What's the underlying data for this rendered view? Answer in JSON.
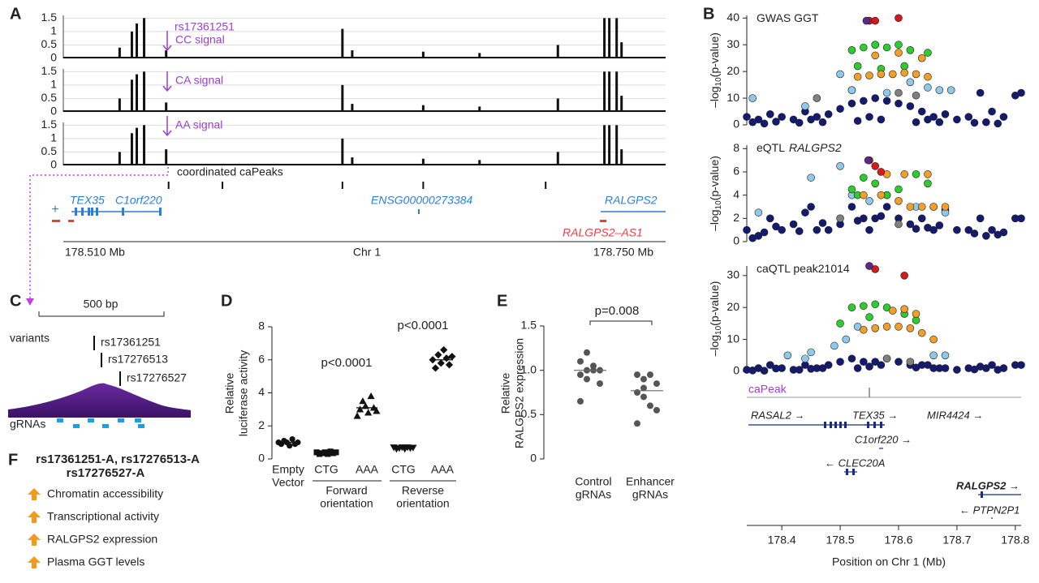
{
  "figure": {
    "panel_labels": [
      "A",
      "B",
      "C",
      "D",
      "E",
      "F"
    ],
    "panel_a": {
      "xlim": [
        178.509,
        178.755
      ],
      "peaks_x": [
        178.532,
        178.537,
        178.539,
        178.542,
        178.551,
        178.623,
        178.627,
        178.656,
        178.679,
        178.711,
        178.73,
        178.732,
        178.735,
        178.737
      ],
      "tracks": [
        {
          "label": "CC signal",
          "ylim": [
            0,
            1.6
          ],
          "yticks": [
            0,
            0.5,
            1,
            1.5
          ],
          "values": [
            0.4,
            1.0,
            1.3,
            1.5,
            0.3,
            1.1,
            0.3,
            0.25,
            0.2,
            0.5,
            1.5,
            1.5,
            1.5,
            0.6
          ]
        },
        {
          "label": "CA signal",
          "ylim": [
            0,
            1.6
          ],
          "yticks": [
            0,
            0.5,
            1,
            1.5
          ],
          "values": [
            0.5,
            1.2,
            1.4,
            1.5,
            0.35,
            1.0,
            0.3,
            0.25,
            0.2,
            0.5,
            1.5,
            1.5,
            1.5,
            0.6
          ]
        },
        {
          "label": "AA signal",
          "ylim": [
            0,
            1.6
          ],
          "yticks": [
            0,
            0.5,
            1,
            1.5
          ],
          "values": [
            0.5,
            1.2,
            1.4,
            1.5,
            0.6,
            1.0,
            0.3,
            0.25,
            0.2,
            0.5,
            1.5,
            1.5,
            1.5,
            0.6
          ]
        }
      ],
      "snp": "rs17361251",
      "capeaks_label": "coordinated caPeaks",
      "capeaks_x": [
        178.552,
        178.574,
        178.623,
        178.656,
        178.706
      ],
      "strand": "+",
      "genes": [
        "TEX35",
        "C1orf220",
        "ENSG00000273384",
        "RALGPS2",
        "RALGPS2–AS1"
      ],
      "axis_labels": [
        "178.510 Mb",
        "Chr 1",
        "178.750 Mb"
      ]
    },
    "panel_b": {
      "xlim": [
        178.34,
        178.81
      ],
      "xticks": [
        178.4,
        178.5,
        178.6,
        178.7,
        178.8
      ],
      "xlabel": "Position on Chr 1 (Mb)",
      "ylabel_parts": [
        "–log",
        "10",
        "(p-value)"
      ],
      "plots": [
        {
          "title": "GWAS GGT",
          "ylim": [
            0,
            41
          ],
          "yticks": [
            0,
            10,
            20,
            30,
            40
          ],
          "series": [
            {
              "color": "#141a6e",
              "x": [
                178.34,
                178.36,
                178.38,
                178.4,
                178.42,
                178.44,
                178.46,
                178.48,
                178.5,
                178.52,
                178.54,
                178.56,
                178.58,
                178.6,
                178.62,
                178.64,
                178.66,
                178.68,
                178.7,
                178.72,
                178.74,
                178.76,
                178.78,
                178.8,
                178.35,
                178.45,
                178.55,
                178.65,
                178.75,
                178.37,
                178.47,
                178.57,
                178.67,
                178.77,
                178.81,
                178.43,
                178.53,
                178.63,
                178.73,
                178.39
              ],
              "y": [
                3,
                2,
                4,
                3,
                2,
                5,
                3,
                4,
                6,
                8,
                9,
                10,
                9,
                8,
                7,
                5,
                3,
                4,
                2,
                3,
                12,
                5,
                3,
                11,
                1,
                2,
                3,
                2,
                1,
                0.5,
                1,
                2,
                1,
                0.5,
                12,
                0.8,
                1.5,
                1,
                0.8,
                1.2
              ]
            },
            {
              "color": "#808080",
              "x": [
                178.46,
                178.52,
                178.56,
                178.6,
                178.63
              ],
              "y": [
                10,
                13,
                30,
                12,
                11
              ]
            },
            {
              "color": "#8fc9ea",
              "x": [
                178.35,
                178.44,
                178.5,
                178.52,
                178.58,
                178.62,
                178.65,
                178.67,
                178.69
              ],
              "y": [
                10,
                7,
                19,
                13,
                12,
                16,
                14,
                13,
                13
              ]
            },
            {
              "color": "#2ecc2e",
              "x": [
                178.52,
                178.54,
                178.56,
                178.58,
                178.6,
                178.62,
                178.53,
                178.57,
                178.61,
                178.65
              ],
              "y": [
                28,
                29,
                30,
                29,
                30,
                28,
                22,
                21,
                22,
                27
              ]
            },
            {
              "color": "#f0a02a",
              "x": [
                178.53,
                178.55,
                178.57,
                178.59,
                178.61,
                178.63,
                178.65,
                178.56,
                178.6,
                178.64
              ],
              "y": [
                18,
                18.5,
                19,
                19,
                19.5,
                19,
                18,
                26,
                27,
                25
              ]
            },
            {
              "color": "#d7191c",
              "x": [
                178.55,
                178.56,
                178.6
              ],
              "y": [
                39,
                39,
                40
              ]
            },
            {
              "color": "#5b2a86",
              "x": [
                178.545
              ],
              "y": [
                39
              ]
            }
          ]
        },
        {
          "title": "eQTL",
          "title_gene": "RALGPS2",
          "ylim": [
            0,
            8.3
          ],
          "yticks": [
            0,
            2,
            4,
            6,
            8
          ],
          "series": [
            {
              "color": "#141a6e",
              "x": [
                178.34,
                178.36,
                178.38,
                178.4,
                178.42,
                178.44,
                178.46,
                178.48,
                178.5,
                178.52,
                178.54,
                178.56,
                178.58,
                178.6,
                178.62,
                178.64,
                178.66,
                178.68,
                178.7,
                178.72,
                178.74,
                178.76,
                178.78,
                178.8,
                178.35,
                178.45,
                178.55,
                178.65,
                178.75,
                178.37,
                178.47,
                178.57,
                178.67,
                178.77,
                178.81,
                178.43,
                178.53,
                178.63,
                178.73,
                178.39
              ],
              "y": [
                1,
                0.5,
                2,
                1,
                1.5,
                2.5,
                1,
                1,
                1.5,
                3,
                2,
                2,
                3,
                2,
                1.5,
                2,
                1,
                2.7,
                1,
                1,
                2,
                1,
                0.8,
                2,
                0.3,
                3,
                1,
                1.2,
                0.5,
                0.8,
                1.6,
                2.2,
                1.4,
                0.6,
                2,
                0.9,
                1.8,
                1.1,
                0.7,
                1.3
              ]
            },
            {
              "color": "#808080",
              "x": [
                178.5,
                178.6
              ],
              "y": [
                2,
                1.5
              ]
            },
            {
              "color": "#8fc9ea",
              "x": [
                178.45,
                178.5,
                178.52,
                178.55,
                178.58,
                178.63,
                178.66,
                178.68,
                178.36
              ],
              "y": [
                5.5,
                6.5,
                4,
                3.5,
                4,
                3,
                3,
                2.5,
                2.5
              ]
            },
            {
              "color": "#2ecc2e",
              "x": [
                178.52,
                178.54,
                178.56,
                178.58,
                178.6,
                178.63,
                178.65,
                178.53
              ],
              "y": [
                4.5,
                5.5,
                5,
                4,
                4.5,
                5.8,
                5,
                4
              ]
            },
            {
              "color": "#f0a02a",
              "x": [
                178.54,
                178.57,
                178.6,
                178.62,
                178.64,
                178.66,
                178.68,
                178.58,
                178.61,
                178.65
              ],
              "y": [
                4,
                4,
                3.5,
                3,
                3,
                3,
                3,
                5.8,
                5.8,
                5.8
              ]
            },
            {
              "color": "#d7191c",
              "x": [
                178.55,
                178.56,
                178.57
              ],
              "y": [
                7,
                6.5,
                6
              ]
            },
            {
              "color": "#5b2a86",
              "x": [
                178.548
              ],
              "y": [
                7
              ]
            }
          ]
        },
        {
          "title": "caQTL peak21014",
          "ylim": [
            0,
            33
          ],
          "yticks": [
            0,
            10,
            20,
            30
          ],
          "series": [
            {
              "color": "#141a6e",
              "x": [
                178.34,
                178.36,
                178.38,
                178.4,
                178.42,
                178.44,
                178.46,
                178.48,
                178.5,
                178.52,
                178.54,
                178.56,
                178.58,
                178.6,
                178.62,
                178.64,
                178.66,
                178.68,
                178.7,
                178.72,
                178.74,
                178.76,
                178.78,
                178.8,
                178.35,
                178.45,
                178.55,
                178.65,
                178.75,
                178.37,
                178.47,
                178.57,
                178.67,
                178.77,
                178.81,
                178.43,
                178.53,
                178.63,
                178.73,
                178.39
              ],
              "y": [
                0.5,
                1,
                2,
                1,
                0.5,
                2,
                1,
                2,
                3,
                4,
                3,
                3,
                4,
                3,
                2,
                2,
                1,
                1,
                0.5,
                1,
                1.5,
                2,
                1,
                2,
                0.3,
                0.8,
                1.5,
                2,
                1,
                0.2,
                1,
                2,
                1,
                0.5,
                2,
                0.5,
                1,
                1.2,
                0.6,
                0.9
              ]
            },
            {
              "color": "#808080",
              "x": [
                178.58,
                178.62
              ],
              "y": [
                4,
                3
              ]
            },
            {
              "color": "#8fc9ea",
              "x": [
                178.41,
                178.45,
                178.49,
                178.51,
                178.53,
                178.66,
                178.68,
                178.44
              ],
              "y": [
                5,
                6,
                8,
                10,
                14,
                5,
                5,
                4
              ]
            },
            {
              "color": "#2ecc2e",
              "x": [
                178.52,
                178.54,
                178.56,
                178.58,
                178.5,
                178.61,
                178.63,
                178.55
              ],
              "y": [
                20,
                20.5,
                21,
                20,
                15,
                18,
                16,
                17
              ]
            },
            {
              "color": "#f0a02a",
              "x": [
                178.54,
                178.56,
                178.58,
                178.6,
                178.62,
                178.64,
                178.66,
                178.59,
                178.61,
                178.63
              ],
              "y": [
                13,
                13.5,
                14,
                14,
                13.5,
                12,
                10,
                19,
                19.5,
                18
              ]
            },
            {
              "color": "#d7191c",
              "x": [
                178.55,
                178.56,
                178.61
              ],
              "y": [
                33,
                32,
                30
              ]
            },
            {
              "color": "#5b2a86",
              "x": [
                178.55
              ],
              "y": [
                33
              ]
            }
          ]
        }
      ],
      "capeak_label": "caPeak",
      "capeak_x": 178.55,
      "genes": [
        "RASAL2 →",
        "TEX35 →",
        "MIR4424 →",
        "C1orf220 →",
        "← CLEC20A",
        "RALGPS2 →",
        "← PTPN2P1"
      ]
    },
    "panel_c": {
      "scale": "500 bp",
      "variants_label": "variants",
      "variants": [
        "rs17361251",
        "rs17276513",
        "rs17276527"
      ],
      "grnas_label": "gRNAs"
    },
    "panel_d": {
      "ylim": [
        0,
        8
      ],
      "yticks": [
        0,
        2,
        4,
        6,
        8
      ],
      "ylabel": [
        "Relative",
        "luciferase activity"
      ],
      "groups": [
        {
          "label": [
            "Empty",
            "Vector"
          ],
          "marker": "circle",
          "values": [
            1.0,
            0.9,
            1.1,
            1.0,
            0.8,
            1.2,
            0.9,
            1.0
          ],
          "mean": 1.0
        },
        {
          "label": [
            "CTG"
          ],
          "marker": "square",
          "values": [
            0.4,
            0.3,
            0.35,
            0.4,
            0.3,
            0.45,
            0.35,
            0.4
          ],
          "mean": 0.37
        },
        {
          "label": [
            "AAA"
          ],
          "marker": "triangle",
          "values": [
            2.6,
            3.0,
            3.5,
            3.2,
            2.8,
            3.8,
            3.1,
            2.9
          ],
          "mean": 3.1
        },
        {
          "label": [
            "CTG"
          ],
          "marker": "triangle-down",
          "values": [
            0.7,
            0.6,
            0.65,
            0.7,
            0.6,
            0.7,
            0.65,
            0.68
          ],
          "mean": 0.66
        },
        {
          "label": [
            "AAA"
          ],
          "marker": "diamond",
          "values": [
            6.0,
            5.5,
            6.3,
            5.8,
            6.6,
            6.1,
            5.7,
            6.2
          ],
          "mean": 6.0
        }
      ],
      "orientations": [
        [
          "Forward",
          "orientation"
        ],
        [
          "Reverse",
          "orientation"
        ]
      ],
      "pvalues": [
        "p<0.0001",
        "p<0.0001"
      ]
    },
    "panel_e": {
      "ylim": [
        0,
        1.5
      ],
      "yticks": [
        0,
        0.5,
        {
          "value": 1,
          "label": "1.0"
        },
        1.5
      ],
      "ylabel": [
        "Relative",
        "RALGPS2 expression"
      ],
      "groups": [
        {
          "label": [
            "Control",
            "gRNAs"
          ],
          "values": [
            1.1,
            1.2,
            1.05,
            1.0,
            0.95,
            0.9,
            1.0,
            0.85,
            0.65,
            1.0
          ],
          "mean": 1.0
        },
        {
          "label": [
            "Enhancer",
            "gRNAs"
          ],
          "values": [
            0.95,
            0.9,
            0.95,
            0.85,
            0.75,
            0.7,
            0.6,
            0.55,
            0.4,
            0.8
          ],
          "mean": 0.77
        }
      ],
      "pvalue": "p=0.008"
    },
    "panel_f": {
      "title_lines": [
        "rs17361251-A, rs17276513-A",
        "rs17276527-A"
      ],
      "items": [
        "Chromatin accessibility",
        "Transcriptional activity",
        "RALGPS2 expression",
        "Plasma GGT levels"
      ]
    }
  }
}
